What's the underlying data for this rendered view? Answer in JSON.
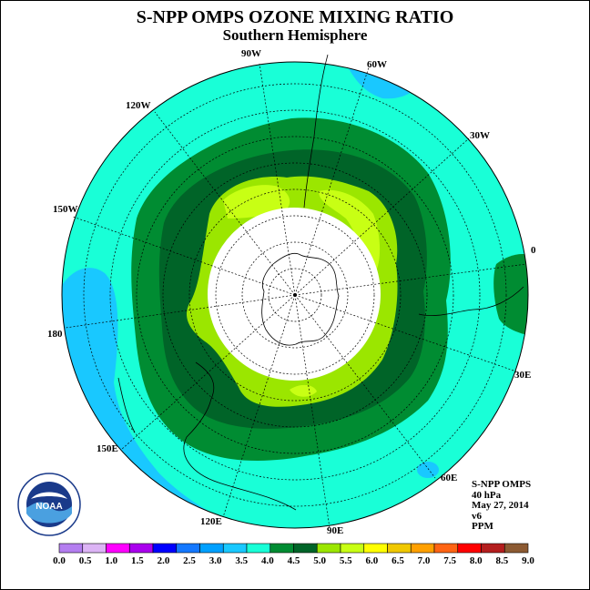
{
  "title": "S-NPP OMPS OZONE MIXING RATIO",
  "subtitle": "Southern Hemisphere",
  "longitude_labels": {
    "w90": "90W",
    "w60": "60W",
    "w30": "30W",
    "e0": "0",
    "e30": "30E",
    "e60": "60E",
    "e90": "90E",
    "e120": "120E",
    "e150": "150E",
    "e180": "180",
    "w150": "150W",
    "w120": "120W"
  },
  "info": {
    "instrument": "S-NPP OMPS",
    "level": "40 hPa",
    "date": "May 27, 2014",
    "version": "v6",
    "units": "PPM"
  },
  "logo": {
    "text": "NOAA",
    "ring_text": "NATIONAL OCEANIC AND ATMOSPHERIC ADMINISTRATION · U.S. DEPARTMENT OF COMMERCE"
  },
  "colorbar": {
    "ticks": [
      "0.0",
      "0.5",
      "1.0",
      "1.5",
      "2.0",
      "2.5",
      "3.0",
      "3.5",
      "4.0",
      "4.5",
      "5.0",
      "5.5",
      "6.0",
      "6.5",
      "7.0",
      "7.5",
      "8.0",
      "8.5",
      "9.0"
    ],
    "colors": [
      "#b47ef0",
      "#dcb4f5",
      "#ff00ff",
      "#aa00ee",
      "#0000ff",
      "#1478ff",
      "#00a0ff",
      "#19c8ff",
      "#19ffd7",
      "#008c32",
      "#006428",
      "#9be600",
      "#c8ff14",
      "#ffff00",
      "#f0c800",
      "#ffa000",
      "#ff6414",
      "#ff0000",
      "#b41e1e",
      "#8c5a32"
    ]
  },
  "colors": {
    "band_3_0_3_5": "#19c8ff",
    "band_3_5_4_0": "#19ffd7",
    "band_4_0_4_5": "#008c32",
    "band_4_5_5_0": "#006428",
    "band_5_0_5_5": "#9be600",
    "band_5_5_6_0": "#c8ff14",
    "no_data": "#ffffff"
  }
}
